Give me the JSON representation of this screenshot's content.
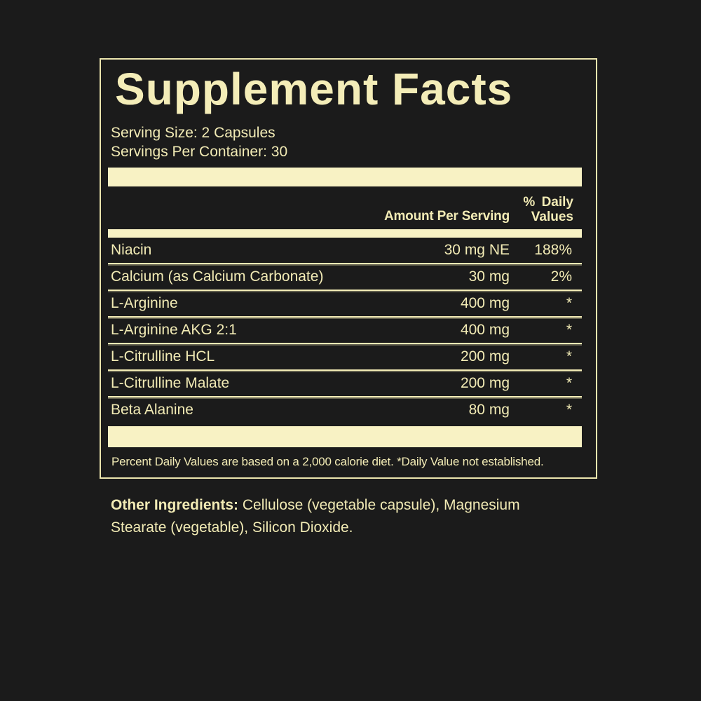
{
  "colors": {
    "background": "#1b1b1b",
    "cream_text": "#f2ebb5",
    "cream_bar": "#f8f2c4",
    "panel_border": "#ece5ae"
  },
  "label": {
    "title": "Supplement Facts",
    "serving_size": "Serving Size: 2 Capsules",
    "servings_per_container": "Servings Per Container: 30",
    "columns": {
      "amount": "Amount Per Serving",
      "dv_line1": "% Daily",
      "dv_line2": "Values"
    },
    "rows": [
      {
        "name": "Niacin",
        "amount": "30 mg NE",
        "dv": "188%"
      },
      {
        "name": "Calcium (as Calcium Carbonate)",
        "amount": "30 mg",
        "dv": "2%"
      },
      {
        "name": "L-Arginine",
        "amount": "400 mg",
        "dv": "*"
      },
      {
        "name": "L-Arginine AKG 2:1",
        "amount": "400 mg",
        "dv": "*"
      },
      {
        "name": "L-Citrulline HCL",
        "amount": "200 mg",
        "dv": "*"
      },
      {
        "name": "L-Citrulline Malate",
        "amount": "200 mg",
        "dv": "*"
      },
      {
        "name": "Beta Alanine",
        "amount": "80 mg",
        "dv": "*"
      }
    ],
    "footnote": "Percent Daily Values are based on a 2,000 calorie diet. *Daily Value not established."
  },
  "other_ingredients": {
    "label": "Other Ingredients:",
    "text": "Cellulose (vegetable capsule), Magnesium Stearate (vegetable), Silicon Dioxide."
  }
}
